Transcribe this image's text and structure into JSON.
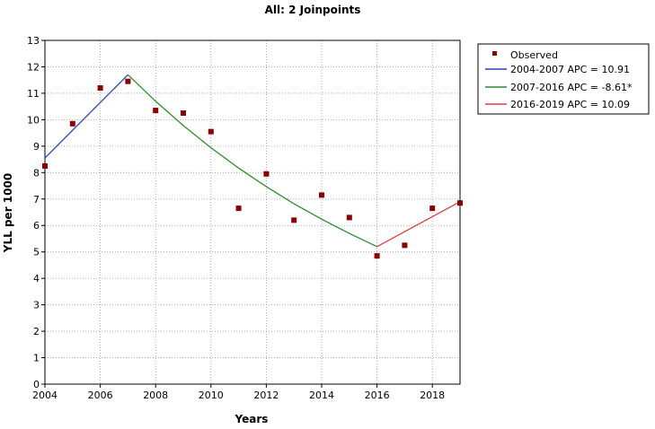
{
  "chart_data": {
    "type": "line",
    "title": "All: 2 Joinpoints",
    "xlabel": "Years",
    "ylabel": "YLL per 1000",
    "xlim": [
      2004,
      2019
    ],
    "ylim": [
      0,
      13
    ],
    "x_ticks": [
      "2004",
      "2006",
      "2008",
      "2010",
      "2012",
      "2014",
      "2016",
      "2018"
    ],
    "y_ticks": [
      "0",
      "1",
      "2",
      "3",
      "4",
      "5",
      "6",
      "7",
      "8",
      "9",
      "10",
      "11",
      "12",
      "13"
    ],
    "grid": true,
    "legend_position": "right",
    "observed": {
      "name": "Observed",
      "color": "#8b0000",
      "x": [
        2004,
        2005,
        2006,
        2007,
        2008,
        2009,
        2010,
        2011,
        2012,
        2013,
        2014,
        2015,
        2016,
        2017,
        2018,
        2019
      ],
      "y": [
        8.25,
        9.85,
        11.2,
        11.45,
        10.35,
        10.25,
        9.55,
        6.65,
        7.95,
        6.2,
        7.15,
        6.3,
        4.85,
        5.25,
        6.65,
        6.85
      ]
    },
    "series": [
      {
        "name": "2004-2007 APC = 10.91",
        "color": "#2f3fb8",
        "x": [
          2004,
          2007
        ],
        "y": [
          8.55,
          11.7
        ]
      },
      {
        "name": "2007-2016 APC = -8.61*",
        "color": "#2e8b2e",
        "x": [
          2007,
          2008,
          2009,
          2010,
          2011,
          2012,
          2013,
          2014,
          2015,
          2016
        ],
        "y": [
          11.7,
          10.7,
          9.78,
          8.94,
          8.17,
          7.47,
          6.82,
          6.24,
          5.7,
          5.2
        ]
      },
      {
        "name": "2016-2019 APC = 10.09",
        "color": "#d94040",
        "x": [
          2016,
          2019
        ],
        "y": [
          5.2,
          6.9
        ]
      }
    ]
  }
}
